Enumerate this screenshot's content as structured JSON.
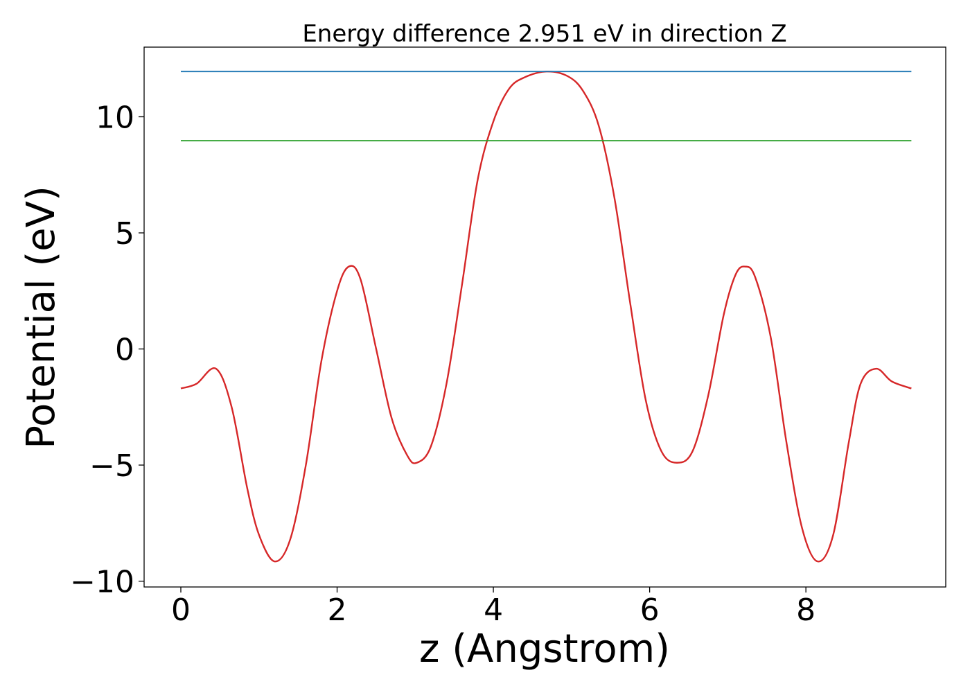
{
  "chart_data": {
    "type": "line",
    "title": "Energy difference 2.951 eV in direction Z",
    "xlabel": "z (Angstrom)",
    "ylabel": "Potential (eV)",
    "xlim": [
      -0.47,
      9.79
    ],
    "ylim": [
      -10.25,
      13.0
    ],
    "x_ticks": [
      0,
      2,
      4,
      6,
      8
    ],
    "x_tick_labels": [
      "0",
      "2",
      "4",
      "6",
      "8"
    ],
    "y_ticks": [
      -10,
      -5,
      0,
      5,
      10
    ],
    "y_tick_labels": [
      "−10",
      "−5",
      "0",
      "5",
      "10"
    ],
    "grid": false,
    "legend": "none",
    "series": [
      {
        "color": "#d62728",
        "x": [
          0.0,
          0.2,
          0.45,
          0.65,
          0.85,
          1.0,
          1.2,
          1.4,
          1.6,
          1.8,
          2.0,
          2.15,
          2.3,
          2.5,
          2.7,
          2.9,
          3.02,
          3.2,
          3.4,
          3.6,
          3.8,
          4.0,
          4.2,
          4.4,
          4.68,
          4.95,
          5.15,
          5.35,
          5.55,
          5.75,
          5.95,
          6.15,
          6.35,
          6.55,
          6.75,
          6.95,
          7.1,
          7.22,
          7.35,
          7.55,
          7.75,
          7.95,
          8.15,
          8.35,
          8.55,
          8.7,
          8.9,
          9.1,
          9.35
        ],
        "y": [
          -1.7,
          -1.5,
          -0.85,
          -2.5,
          -6.0,
          -8.0,
          -9.15,
          -8.2,
          -5.0,
          -0.5,
          2.5,
          3.55,
          3.0,
          0.0,
          -3.0,
          -4.6,
          -4.9,
          -4.2,
          -1.5,
          2.8,
          7.3,
          9.8,
          11.2,
          11.7,
          11.95,
          11.75,
          11.1,
          9.6,
          6.5,
          2.0,
          -2.2,
          -4.4,
          -4.9,
          -4.4,
          -2.0,
          1.5,
          3.2,
          3.55,
          3.1,
          0.5,
          -4.0,
          -7.7,
          -9.15,
          -8.0,
          -4.0,
          -1.5,
          -0.85,
          -1.4,
          -1.7
        ]
      },
      {
        "color": "#1f77b4",
        "x": [
          0.0,
          9.35
        ],
        "y": [
          11.95,
          11.95
        ]
      },
      {
        "color": "#2ca02c",
        "x": [
          0.0,
          9.35
        ],
        "y": [
          8.97,
          8.97
        ]
      }
    ]
  }
}
